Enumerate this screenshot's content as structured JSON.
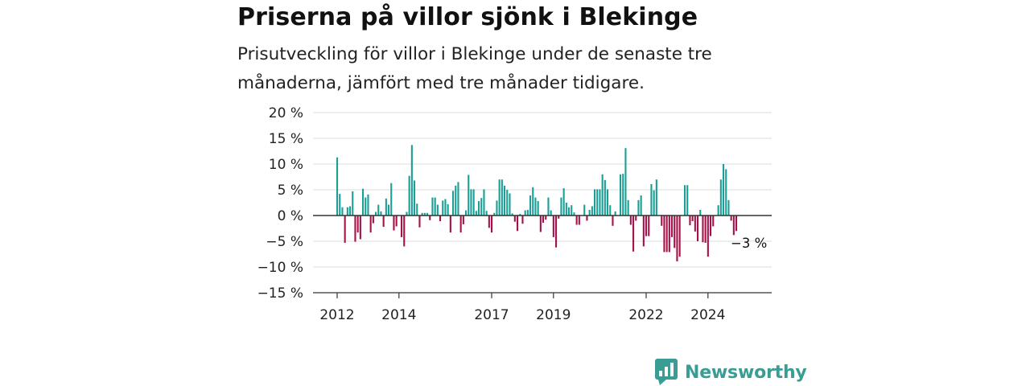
{
  "title": "Priserna på villor sjönk i Blekinge",
  "subtitle": "Prisutveckling för villor i Blekinge under de senaste tre månaderna, jämfört med tre månader tidigare.",
  "brand": {
    "name": "Newsworthy",
    "color": "#3a9d94",
    "icon": "bar-chart-speech-bubble-icon"
  },
  "colors": {
    "positive": "#1a9e96",
    "negative": "#a5124a",
    "grid": "#dddddd",
    "zero_line": "#333333"
  },
  "chart_data": {
    "type": "bar",
    "x_start": "2012-01",
    "x_step": "month",
    "ylim": [
      -15,
      20
    ],
    "y_ticks": [
      {
        "value": 20,
        "label": "20 %"
      },
      {
        "value": 15,
        "label": "15 %"
      },
      {
        "value": 10,
        "label": "10 %"
      },
      {
        "value": 5,
        "label": "5 %"
      },
      {
        "value": 0,
        "label": "0 %"
      },
      {
        "value": -5,
        "label": "−5 %"
      },
      {
        "value": -10,
        "label": "−10 %"
      },
      {
        "value": -15,
        "label": "−15 %"
      }
    ],
    "x_ticks": [
      "2012",
      "2014",
      "2017",
      "2019",
      "2022",
      "2024"
    ],
    "grid": true,
    "annotation": {
      "text": "−3 %",
      "value": -3
    },
    "values": [
      11.3,
      4.2,
      1.6,
      -5.3,
      1.6,
      1.8,
      4.7,
      -5.1,
      -3.3,
      -4.6,
      5.2,
      3.5,
      4.1,
      -3.3,
      -1.5,
      0.7,
      2.1,
      0.8,
      -2.2,
      3.3,
      2.1,
      6.3,
      -2.9,
      -2.1,
      0.0,
      -4.2,
      -6.0,
      0.7,
      7.7,
      13.7,
      6.8,
      2.3,
      -2.3,
      0.5,
      0.5,
      0.5,
      -0.9,
      3.5,
      3.5,
      2.1,
      -1.1,
      2.9,
      3.2,
      2.2,
      -3.3,
      4.8,
      5.8,
      6.5,
      -3.3,
      -1.7,
      1.0,
      7.9,
      5.1,
      5.1,
      0.9,
      2.8,
      3.4,
      5.1,
      0.9,
      -2.4,
      -3.3,
      0.5,
      2.9,
      7.0,
      7.0,
      5.8,
      5.0,
      4.3,
      0.4,
      -1.2,
      -3.0,
      0.3,
      -1.6,
      1.0,
      1.1,
      3.9,
      5.5,
      3.5,
      2.8,
      -3.2,
      -1.4,
      -0.8,
      3.5,
      1.0,
      -4.2,
      -6.2,
      -0.6,
      3.5,
      5.3,
      2.5,
      1.6,
      2.0,
      0.6,
      -1.8,
      -1.8,
      0.0,
      2.1,
      -1.0,
      1.1,
      1.8,
      5.1,
      5.1,
      5.1,
      8.0,
      6.9,
      5.1,
      2.0,
      -2.0,
      0.8,
      0.0,
      8.0,
      8.1,
      13.1,
      3.0,
      -1.8,
      -7.0,
      -1.0,
      3.0,
      3.9,
      -6.0,
      -4.0,
      -4.0,
      6.1,
      4.9,
      7.0,
      0.0,
      -2.0,
      -7.1,
      -7.1,
      -7.1,
      -4.2,
      -6.3,
      -8.9,
      -8.0,
      0.0,
      5.9,
      5.9,
      -1.9,
      -1.1,
      -3.1,
      -5.0,
      1.1,
      -5.2,
      -5.3,
      -8.0,
      -4.0,
      -2.1,
      0.0,
      2.0,
      7.0,
      10.0,
      9.0,
      3.0,
      -1.0,
      -3.8,
      -3.0
    ]
  }
}
